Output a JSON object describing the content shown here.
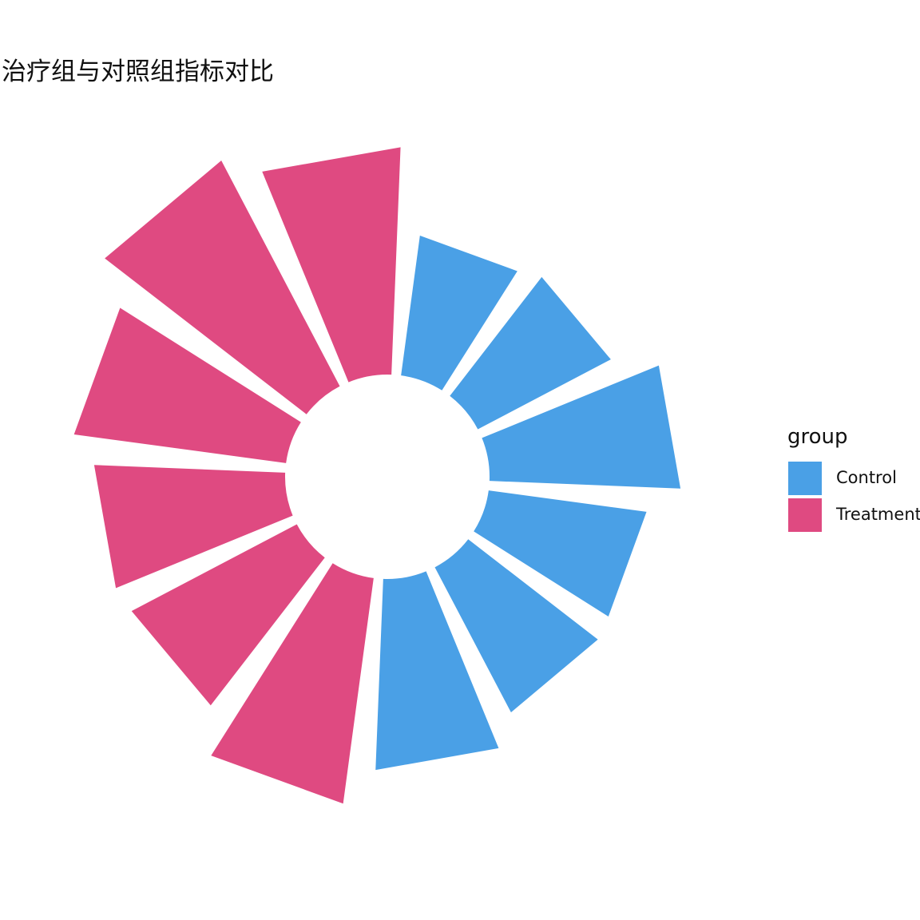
{
  "chart_data": {
    "type": "bar",
    "subtype": "circular-bar (polar) with inner hole",
    "title": "治疗组与对照组指标对比",
    "xlabel": "",
    "ylabel": "",
    "grid": false,
    "axes_visible": false,
    "legend": {
      "title": "group",
      "placement": "right",
      "entries": [
        "Control",
        "Treatment"
      ]
    },
    "colors": {
      "Control": "#4aa0e6",
      "Treatment": "#df4a81"
    },
    "bars": [
      {
        "group": "Control",
        "value": 3.1
      },
      {
        "group": "Control",
        "value": 3.3
      },
      {
        "group": "Control",
        "value": 4.2
      },
      {
        "group": "Control",
        "value": 3.5
      },
      {
        "group": "Control",
        "value": 3.6
      },
      {
        "group": "Control",
        "value": 4.2
      },
      {
        "group": "Treatment",
        "value": 5.0
      },
      {
        "group": "Treatment",
        "value": 4.1
      },
      {
        "group": "Treatment",
        "value": 4.2
      },
      {
        "group": "Treatment",
        "value": 4.7
      },
      {
        "group": "Treatment",
        "value": 5.6
      },
      {
        "group": "Treatment",
        "value": 5.0
      }
    ]
  }
}
